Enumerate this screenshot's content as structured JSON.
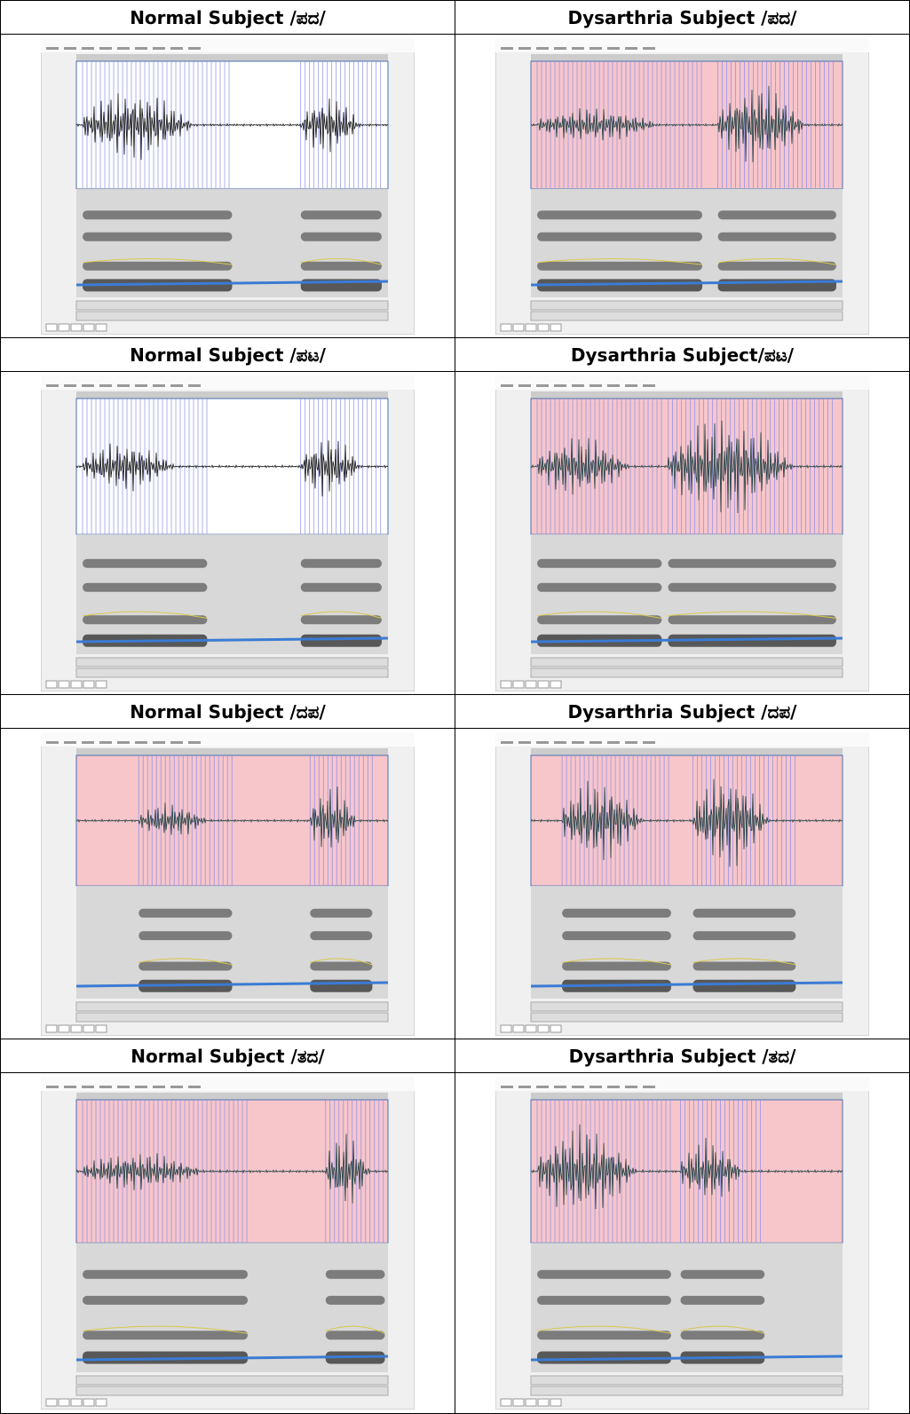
{
  "panels": [
    {
      "title": "Normal Subject /ಪದ/"
    },
    {
      "title": "Dysarthria Subject /ಪದ/"
    },
    {
      "title": "Normal Subject /ಪಟ/"
    },
    {
      "title": "Dysarthria Subject/ಪಟ/"
    },
    {
      "title": "Normal Subject /ದಪ/"
    },
    {
      "title": "Dysarthria Subject /ದಪ/"
    },
    {
      "title": "Normal Subject /ತದ/"
    },
    {
      "title": "Dysarthria Subject /ತದ/"
    }
  ]
}
